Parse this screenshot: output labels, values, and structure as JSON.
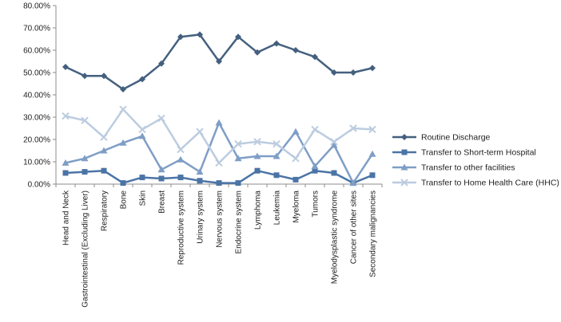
{
  "chart_data": {
    "type": "line",
    "title": "",
    "xlabel": "",
    "ylabel": "",
    "ylim": [
      0,
      80
    ],
    "y_tick_labels": [
      "0.00%",
      "10.00%",
      "20.00%",
      "30.00%",
      "40.00%",
      "50.00%",
      "60.00%",
      "70.00%",
      "80.00%"
    ],
    "grid": false,
    "legend_position": "right",
    "categories": [
      "Head and Neck",
      "Gastrointestinal  (Excluding Liver)",
      "Respiratory",
      "Bone",
      "Skin",
      "Breast",
      "Reproductive system",
      "Urinary system",
      "Nervous system",
      "Endocrine system",
      "Lymphoma",
      "Leukemia",
      "Myeloma",
      "Tumors",
      "Myelodysplastic syndrome",
      "Cancer of other sites",
      "Secondary malignancies"
    ],
    "series": [
      {
        "name": "Routine Discharge",
        "color": "#44607f",
        "marker": "diamond",
        "values": [
          52.5,
          48.5,
          48.5,
          42.5,
          47,
          54,
          66,
          67,
          55,
          66,
          59,
          63,
          60,
          57,
          50,
          50,
          52
        ]
      },
      {
        "name": "Transfer to Short-term Hospital",
        "color": "#4b74a6",
        "marker": "square",
        "values": [
          5,
          5.5,
          6,
          0.5,
          3,
          2.5,
          3,
          1.5,
          0.5,
          0.5,
          6,
          4,
          2,
          6,
          5,
          0.5,
          4
        ]
      },
      {
        "name": "Transfer to other facilities",
        "color": "#7f9ec6",
        "marker": "triangle",
        "values": [
          9.5,
          11.5,
          15,
          18.5,
          21.5,
          6.5,
          11,
          5.5,
          27.5,
          11.5,
          12.5,
          12.5,
          23.5,
          8,
          17.5,
          0.5,
          13.5
        ]
      },
      {
        "name": "Transfer to Home Health Care (HHC)",
        "color": "#bccce0",
        "marker": "x",
        "values": [
          30.5,
          28.5,
          21,
          33.5,
          24.5,
          29.5,
          15.5,
          23.5,
          9.5,
          18,
          19,
          18,
          11.5,
          24.5,
          19,
          25,
          24.5
        ]
      }
    ]
  }
}
